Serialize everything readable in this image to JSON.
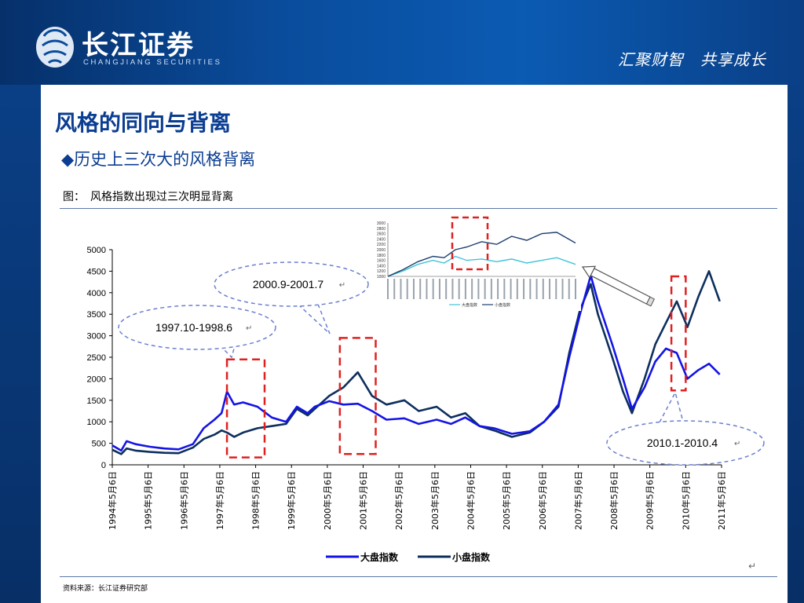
{
  "header": {
    "logo_cn": "长江证券",
    "logo_en": "CHANGJIANG SECURITIES",
    "slogan": "汇聚财智　共享成长"
  },
  "slide": {
    "title": "风格的同向与背离",
    "subtitle": "◆历史上三次大的风格背离",
    "figure_caption": "图：　风格指数出现过三次明显背离",
    "source": "资料来源：长江证券研究部",
    "return_mark": "↵"
  },
  "colors": {
    "large_cap": "#1414e6",
    "small_cap": "#0d2f5e",
    "highlight_box": "#e02020",
    "callout": "#6b7fd0",
    "header_blue": "#0a4c9c",
    "title_blue": "#0b3d91"
  },
  "chart_data": [
    {
      "type": "line",
      "ylim": [
        0,
        5000
      ],
      "yticks": [
        "0",
        "500",
        "1000",
        "1500",
        "2000",
        "2500",
        "3000",
        "3500",
        "4000",
        "4500",
        "5000"
      ],
      "xticks": [
        "1994年5月6日",
        "1995年5月6日",
        "1996年5月6日",
        "1997年5月6日",
        "1998年5月6日",
        "1999年5月6日",
        "2000年5月6日",
        "2001年5月6日",
        "2002年5月6日",
        "2003年5月6日",
        "2004年5月6日",
        "2005年5月6日",
        "2006年5月6日",
        "2007年5月6日",
        "2008年5月6日",
        "2009年5月6日",
        "2010年5月6日",
        "2011年5月6日"
      ],
      "x_range": [
        1994.35,
        2011.35
      ],
      "legend_position": "bottom-center",
      "series": [
        {
          "name": "大盘指数",
          "points": [
            [
              1994.35,
              450
            ],
            [
              1994.6,
              330
            ],
            [
              1994.75,
              550
            ],
            [
              1995.0,
              480
            ],
            [
              1995.4,
              420
            ],
            [
              1995.8,
              380
            ],
            [
              1996.2,
              360
            ],
            [
              1996.6,
              480
            ],
            [
              1996.9,
              850
            ],
            [
              1997.2,
              1050
            ],
            [
              1997.4,
              1200
            ],
            [
              1997.55,
              1700
            ],
            [
              1997.75,
              1400
            ],
            [
              1998.0,
              1450
            ],
            [
              1998.4,
              1350
            ],
            [
              1998.8,
              1100
            ],
            [
              1999.2,
              1000
            ],
            [
              1999.5,
              1350
            ],
            [
              1999.8,
              1200
            ],
            [
              2000.0,
              1350
            ],
            [
              2000.4,
              1480
            ],
            [
              2000.8,
              1400
            ],
            [
              2001.2,
              1420
            ],
            [
              2001.6,
              1250
            ],
            [
              2002.0,
              1050
            ],
            [
              2002.5,
              1080
            ],
            [
              2002.9,
              950
            ],
            [
              2003.4,
              1050
            ],
            [
              2003.8,
              950
            ],
            [
              2004.2,
              1100
            ],
            [
              2004.6,
              900
            ],
            [
              2005.0,
              850
            ],
            [
              2005.5,
              720
            ],
            [
              2006.0,
              780
            ],
            [
              2006.4,
              1000
            ],
            [
              2006.8,
              1400
            ],
            [
              2007.1,
              2500
            ],
            [
              2007.4,
              3500
            ],
            [
              2007.7,
              4400
            ],
            [
              2007.9,
              3800
            ],
            [
              2008.3,
              2800
            ],
            [
              2008.6,
              2000
            ],
            [
              2008.85,
              1300
            ],
            [
              2009.2,
              1800
            ],
            [
              2009.5,
              2400
            ],
            [
              2009.8,
              2700
            ],
            [
              2010.1,
              2600
            ],
            [
              2010.4,
              2000
            ],
            [
              2010.7,
              2200
            ],
            [
              2011.0,
              2350
            ],
            [
              2011.3,
              2100
            ]
          ]
        },
        {
          "name": "小盘指数",
          "points": [
            [
              1994.35,
              350
            ],
            [
              1994.6,
              250
            ],
            [
              1994.75,
              380
            ],
            [
              1995.0,
              330
            ],
            [
              1995.4,
              300
            ],
            [
              1995.8,
              280
            ],
            [
              1996.2,
              270
            ],
            [
              1996.6,
              400
            ],
            [
              1996.9,
              600
            ],
            [
              1997.2,
              700
            ],
            [
              1997.4,
              800
            ],
            [
              1997.55,
              750
            ],
            [
              1997.75,
              650
            ],
            [
              1998.0,
              750
            ],
            [
              1998.4,
              850
            ],
            [
              1998.8,
              900
            ],
            [
              1999.2,
              950
            ],
            [
              1999.5,
              1300
            ],
            [
              1999.8,
              1150
            ],
            [
              2000.0,
              1300
            ],
            [
              2000.4,
              1600
            ],
            [
              2000.8,
              1800
            ],
            [
              2001.2,
              2150
            ],
            [
              2001.6,
              1600
            ],
            [
              2002.0,
              1400
            ],
            [
              2002.5,
              1500
            ],
            [
              2002.9,
              1250
            ],
            [
              2003.4,
              1350
            ],
            [
              2003.8,
              1100
            ],
            [
              2004.2,
              1200
            ],
            [
              2004.6,
              900
            ],
            [
              2005.0,
              800
            ],
            [
              2005.5,
              650
            ],
            [
              2006.0,
              750
            ],
            [
              2006.4,
              1000
            ],
            [
              2006.8,
              1350
            ],
            [
              2007.1,
              2600
            ],
            [
              2007.4,
              3600
            ],
            [
              2007.7,
              4200
            ],
            [
              2007.9,
              3500
            ],
            [
              2008.3,
              2500
            ],
            [
              2008.6,
              1700
            ],
            [
              2008.85,
              1200
            ],
            [
              2009.2,
              2000
            ],
            [
              2009.5,
              2800
            ],
            [
              2009.8,
              3300
            ],
            [
              2010.1,
              3800
            ],
            [
              2010.4,
              3200
            ],
            [
              2010.7,
              3900
            ],
            [
              2011.0,
              4500
            ],
            [
              2011.3,
              3800
            ]
          ]
        }
      ],
      "highlight_periods": [
        [
          1997.55,
          1998.6
        ],
        [
          2000.7,
          2001.7
        ],
        [
          2009.95,
          2010.35
        ]
      ],
      "annotations": [
        "1997.10-1998.6",
        "2000.9-2001.7",
        "2010.1-2010.4"
      ]
    },
    {
      "type": "line",
      "ylim": [
        1000,
        3000
      ],
      "yticks": [
        "1000",
        "1200",
        "1400",
        "1600",
        "1800",
        "2000",
        "2200",
        "2400",
        "2600",
        "2800",
        "3000"
      ],
      "x_range": [
        0,
        1
      ],
      "legend_position": "bottom-center",
      "series": [
        {
          "name": "大盘指数",
          "points": [
            [
              0,
              1000
            ],
            [
              0.08,
              1200
            ],
            [
              0.16,
              1450
            ],
            [
              0.24,
              1600
            ],
            [
              0.3,
              1500
            ],
            [
              0.36,
              1750
            ],
            [
              0.42,
              1600
            ],
            [
              0.5,
              1650
            ],
            [
              0.58,
              1550
            ],
            [
              0.66,
              1650
            ],
            [
              0.74,
              1500
            ],
            [
              0.82,
              1600
            ],
            [
              0.9,
              1700
            ],
            [
              1.0,
              1450
            ]
          ]
        },
        {
          "name": "小盘指数",
          "points": [
            [
              0,
              1000
            ],
            [
              0.08,
              1250
            ],
            [
              0.16,
              1550
            ],
            [
              0.24,
              1750
            ],
            [
              0.3,
              1700
            ],
            [
              0.36,
              2000
            ],
            [
              0.42,
              2100
            ],
            [
              0.5,
              2300
            ],
            [
              0.58,
              2200
            ],
            [
              0.66,
              2500
            ],
            [
              0.74,
              2350
            ],
            [
              0.82,
              2600
            ],
            [
              0.9,
              2650
            ],
            [
              1.0,
              2250
            ]
          ]
        }
      ]
    }
  ]
}
